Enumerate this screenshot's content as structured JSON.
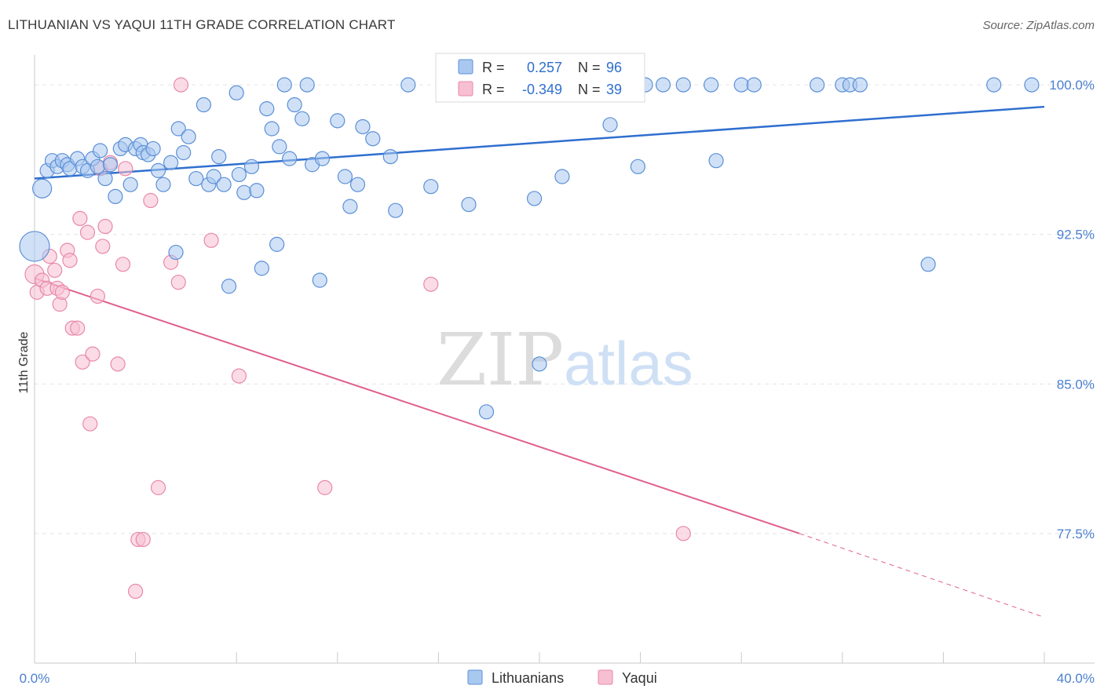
{
  "header": {
    "title": "LITHUANIAN VS YAQUI 11TH GRADE CORRELATION CHART",
    "source": "Source: ZipAtlas.com"
  },
  "watermark": {
    "zip": "ZIP",
    "atlas": "atlas"
  },
  "colors": {
    "blue_fill": "#a9c8f0",
    "blue_stroke": "#5b8fd6",
    "blue_line": "#2f6fcf",
    "pink_fill": "#f7bfd2",
    "pink_stroke": "#e888a9",
    "pink_line": "#e0608f",
    "tick_text": "#4a7fd0",
    "grid": "#e4e4e4"
  },
  "stats_legend": [
    {
      "r_label": "R =",
      "r_value": "0.257",
      "n_label": "N =",
      "n_value": "96"
    },
    {
      "r_label": "R =",
      "r_value": "-0.349",
      "n_label": "N =",
      "n_value": "39"
    }
  ],
  "chart_data": {
    "type": "scatter",
    "title": "LITHUANIAN VS YAQUI 11TH GRADE CORRELATION CHART",
    "xlabel": "",
    "ylabel": "11th Grade",
    "xlim": [
      0,
      40
    ],
    "ylim": [
      71.0,
      101.5
    ],
    "x_tick_labels": [
      "0.0%",
      "40.0%"
    ],
    "y_ticks": [
      100.0,
      92.5,
      85.0,
      77.5
    ],
    "y_tick_labels": [
      "100.0%",
      "92.5%",
      "85.0%",
      "77.5%"
    ],
    "grid": true,
    "legend_position": "bottom-center",
    "series": [
      {
        "name": "Lithuanians",
        "r": 0.257,
        "n": 96,
        "trend": {
          "x": [
            0,
            40
          ],
          "y": [
            95.3,
            98.9
          ]
        },
        "points": [
          {
            "x": 0.0,
            "y": 91.9,
            "s": 3
          },
          {
            "x": 0.3,
            "y": 94.8,
            "s": 2
          },
          {
            "x": 0.5,
            "y": 95.7
          },
          {
            "x": 0.7,
            "y": 96.2
          },
          {
            "x": 0.9,
            "y": 95.9
          },
          {
            "x": 1.1,
            "y": 96.2
          },
          {
            "x": 1.3,
            "y": 96.0
          },
          {
            "x": 1.4,
            "y": 95.8
          },
          {
            "x": 1.7,
            "y": 96.3
          },
          {
            "x": 1.9,
            "y": 95.9
          },
          {
            "x": 2.1,
            "y": 95.7
          },
          {
            "x": 2.3,
            "y": 96.3
          },
          {
            "x": 2.5,
            "y": 95.9
          },
          {
            "x": 2.6,
            "y": 96.7
          },
          {
            "x": 2.8,
            "y": 95.3
          },
          {
            "x": 3.0,
            "y": 96.0
          },
          {
            "x": 3.2,
            "y": 94.4
          },
          {
            "x": 3.4,
            "y": 96.8
          },
          {
            "x": 3.6,
            "y": 97.0
          },
          {
            "x": 3.8,
            "y": 95.0
          },
          {
            "x": 4.0,
            "y": 96.8
          },
          {
            "x": 4.2,
            "y": 97.0
          },
          {
            "x": 4.3,
            "y": 96.6
          },
          {
            "x": 4.5,
            "y": 96.5
          },
          {
            "x": 4.7,
            "y": 96.8
          },
          {
            "x": 4.9,
            "y": 95.7
          },
          {
            "x": 5.1,
            "y": 95.0
          },
          {
            "x": 5.4,
            "y": 96.1
          },
          {
            "x": 5.6,
            "y": 91.6
          },
          {
            "x": 5.7,
            "y": 97.8
          },
          {
            "x": 5.9,
            "y": 96.6
          },
          {
            "x": 6.1,
            "y": 97.4
          },
          {
            "x": 6.4,
            "y": 95.3
          },
          {
            "x": 6.7,
            "y": 99.0
          },
          {
            "x": 6.9,
            "y": 95.0
          },
          {
            "x": 7.1,
            "y": 95.4
          },
          {
            "x": 7.3,
            "y": 96.4
          },
          {
            "x": 7.5,
            "y": 95.0
          },
          {
            "x": 7.7,
            "y": 89.9
          },
          {
            "x": 8.0,
            "y": 99.6
          },
          {
            "x": 8.1,
            "y": 95.5
          },
          {
            "x": 8.3,
            "y": 94.6
          },
          {
            "x": 8.6,
            "y": 95.9
          },
          {
            "x": 8.8,
            "y": 94.7
          },
          {
            "x": 9.0,
            "y": 90.8
          },
          {
            "x": 9.2,
            "y": 98.8
          },
          {
            "x": 9.4,
            "y": 97.8
          },
          {
            "x": 9.6,
            "y": 92.0
          },
          {
            "x": 9.7,
            "y": 96.9
          },
          {
            "x": 9.9,
            "y": 100.0
          },
          {
            "x": 10.1,
            "y": 96.3
          },
          {
            "x": 10.3,
            "y": 99.0
          },
          {
            "x": 10.6,
            "y": 98.3
          },
          {
            "x": 10.8,
            "y": 100.0
          },
          {
            "x": 11.0,
            "y": 96.0
          },
          {
            "x": 11.3,
            "y": 90.2
          },
          {
            "x": 11.4,
            "y": 96.3
          },
          {
            "x": 12.0,
            "y": 98.2
          },
          {
            "x": 12.3,
            "y": 95.4
          },
          {
            "x": 12.5,
            "y": 93.9
          },
          {
            "x": 12.8,
            "y": 95.0
          },
          {
            "x": 13.0,
            "y": 97.9
          },
          {
            "x": 13.4,
            "y": 97.3
          },
          {
            "x": 14.1,
            "y": 96.4
          },
          {
            "x": 14.3,
            "y": 93.7
          },
          {
            "x": 14.8,
            "y": 100.0
          },
          {
            "x": 15.7,
            "y": 94.9
          },
          {
            "x": 16.2,
            "y": 100.0
          },
          {
            "x": 16.7,
            "y": 100.0
          },
          {
            "x": 17.2,
            "y": 94.0
          },
          {
            "x": 17.9,
            "y": 83.6
          },
          {
            "x": 18.2,
            "y": 100.0
          },
          {
            "x": 18.9,
            "y": 100.0
          },
          {
            "x": 19.8,
            "y": 94.3
          },
          {
            "x": 20.0,
            "y": 86.0
          },
          {
            "x": 20.8,
            "y": 100.0
          },
          {
            "x": 20.9,
            "y": 95.4
          },
          {
            "x": 21.4,
            "y": 100.0
          },
          {
            "x": 22.3,
            "y": 100.0
          },
          {
            "x": 22.8,
            "y": 98.0
          },
          {
            "x": 22.9,
            "y": 100.0
          },
          {
            "x": 23.0,
            "y": 100.0
          },
          {
            "x": 23.7,
            "y": 100.0
          },
          {
            "x": 24.2,
            "y": 100.0
          },
          {
            "x": 23.9,
            "y": 95.9
          },
          {
            "x": 24.9,
            "y": 100.0
          },
          {
            "x": 25.7,
            "y": 100.0
          },
          {
            "x": 26.8,
            "y": 100.0
          },
          {
            "x": 27.0,
            "y": 96.2
          },
          {
            "x": 28.0,
            "y": 100.0
          },
          {
            "x": 28.5,
            "y": 100.0
          },
          {
            "x": 31.0,
            "y": 100.0
          },
          {
            "x": 32.0,
            "y": 100.0
          },
          {
            "x": 32.3,
            "y": 100.0
          },
          {
            "x": 32.7,
            "y": 100.0
          },
          {
            "x": 35.4,
            "y": 91.0
          },
          {
            "x": 38.0,
            "y": 100.0
          },
          {
            "x": 39.5,
            "y": 100.0
          }
        ]
      },
      {
        "name": "Yaqui",
        "r": -0.349,
        "n": 39,
        "trend": {
          "x": [
            0,
            30.3
          ],
          "y": [
            90.3,
            77.5
          ]
        },
        "trend_dashed": {
          "x": [
            30.3,
            40
          ],
          "y": [
            77.5,
            73.3
          ]
        },
        "points": [
          {
            "x": 0.0,
            "y": 90.5,
            "s": 2
          },
          {
            "x": 0.1,
            "y": 89.6
          },
          {
            "x": 0.3,
            "y": 90.2
          },
          {
            "x": 0.5,
            "y": 89.8
          },
          {
            "x": 0.6,
            "y": 91.4
          },
          {
            "x": 0.8,
            "y": 90.7
          },
          {
            "x": 0.9,
            "y": 89.8
          },
          {
            "x": 1.0,
            "y": 89.0
          },
          {
            "x": 1.1,
            "y": 89.6
          },
          {
            "x": 1.3,
            "y": 91.7
          },
          {
            "x": 1.4,
            "y": 91.2
          },
          {
            "x": 1.5,
            "y": 87.8
          },
          {
            "x": 1.7,
            "y": 87.8
          },
          {
            "x": 1.8,
            "y": 93.3
          },
          {
            "x": 1.9,
            "y": 86.1
          },
          {
            "x": 2.1,
            "y": 92.6
          },
          {
            "x": 2.2,
            "y": 83.0
          },
          {
            "x": 2.3,
            "y": 86.5
          },
          {
            "x": 2.5,
            "y": 89.4
          },
          {
            "x": 2.6,
            "y": 95.8
          },
          {
            "x": 2.7,
            "y": 91.9
          },
          {
            "x": 2.8,
            "y": 92.9
          },
          {
            "x": 3.0,
            "y": 96.1
          },
          {
            "x": 3.3,
            "y": 86.0
          },
          {
            "x": 3.5,
            "y": 91.0
          },
          {
            "x": 3.6,
            "y": 95.8
          },
          {
            "x": 4.0,
            "y": 74.6
          },
          {
            "x": 4.1,
            "y": 77.2
          },
          {
            "x": 4.3,
            "y": 77.2
          },
          {
            "x": 4.6,
            "y": 94.2
          },
          {
            "x": 4.9,
            "y": 79.8
          },
          {
            "x": 5.4,
            "y": 91.1
          },
          {
            "x": 5.7,
            "y": 90.1
          },
          {
            "x": 5.8,
            "y": 100.0
          },
          {
            "x": 7.0,
            "y": 92.2
          },
          {
            "x": 8.1,
            "y": 85.4
          },
          {
            "x": 11.5,
            "y": 79.8
          },
          {
            "x": 15.7,
            "y": 90.0
          },
          {
            "x": 25.7,
            "y": 77.5
          }
        ]
      }
    ]
  },
  "bottom_legend": [
    {
      "label": "Lithuanians"
    },
    {
      "label": "Yaqui"
    }
  ]
}
